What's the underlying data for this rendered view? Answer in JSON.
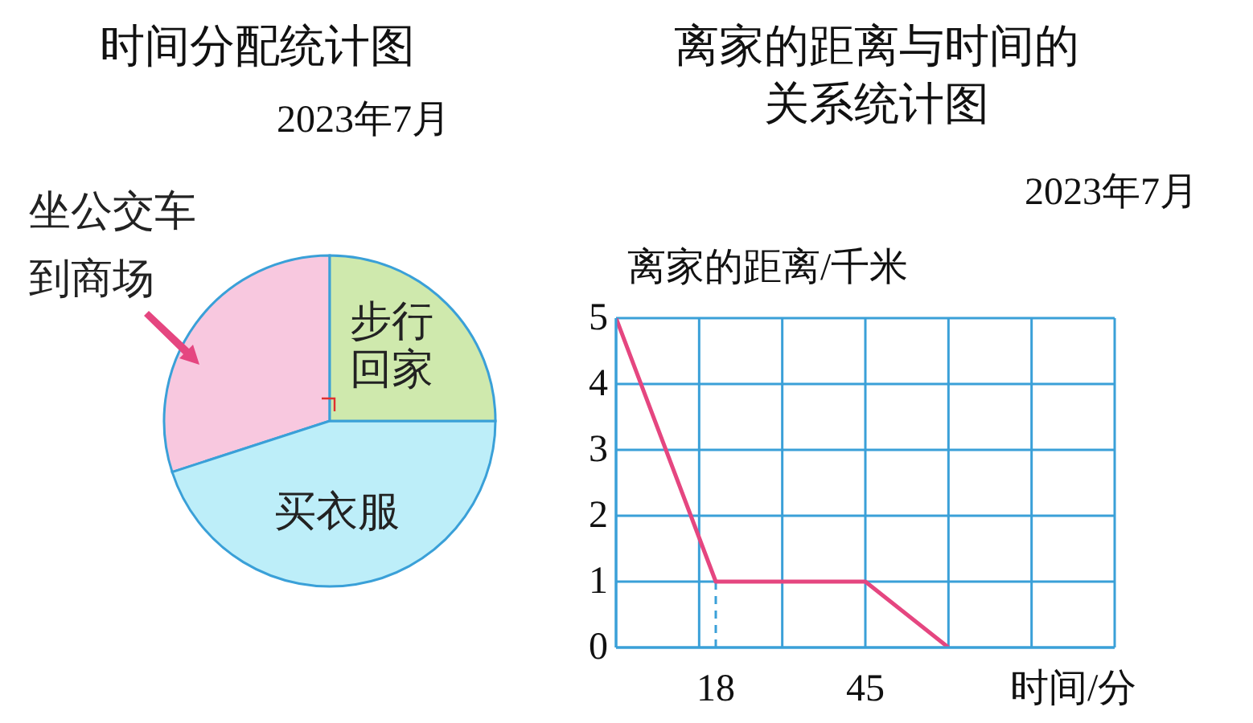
{
  "chart_data": [
    {
      "type": "pie",
      "title": "时间分配统计图",
      "subtitle": "2023年7月",
      "categories": [
        "坐公交车到商场",
        "买衣服",
        "步行回家"
      ],
      "values": [
        30,
        45,
        25
      ],
      "colors": [
        "#f8c8df",
        "#bdeef9",
        "#cfe9ad"
      ]
    },
    {
      "type": "line",
      "title": "离家的距离与时间的关系统计图",
      "subtitle": "2023年7月",
      "xlabel": "时间/分",
      "ylabel": "离家的距离/千米",
      "x": [
        0,
        18,
        45,
        60
      ],
      "series": [
        {
          "color": "#e54680",
          "values": [
            5,
            1,
            1,
            0
          ]
        }
      ],
      "xlim": [
        0,
        90
      ],
      "xticks": [
        {
          "value": 0,
          "label": null
        },
        {
          "value": 15,
          "label": null
        },
        18,
        {
          "value": 30,
          "label": null
        },
        45,
        {
          "value": 60,
          "label": null
        },
        {
          "value": 75,
          "label": null
        },
        {
          "value": 90,
          "label": null
        }
      ],
      "ylim": [
        0,
        5
      ],
      "yticks": [
        0,
        1,
        2,
        3,
        4,
        5
      ],
      "grid": true,
      "ref_lines": [
        {
          "axis": "x",
          "value": 18,
          "color": "#3aa0d8",
          "line_style": "dashed"
        }
      ]
    }
  ]
}
